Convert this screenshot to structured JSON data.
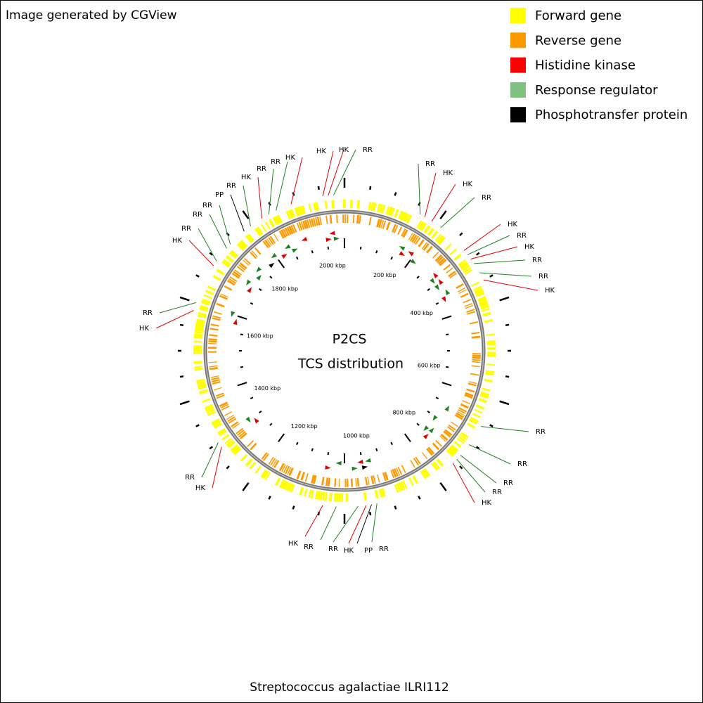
{
  "header": {
    "title": "Image generated by CGView"
  },
  "legend": [
    {
      "label": "Forward gene",
      "color": "#ffff00"
    },
    {
      "label": "Reverse gene",
      "color": "#ff9900"
    },
    {
      "label": "Histidine kinase",
      "color": "#ff0000"
    },
    {
      "label": "Response regulator",
      "color": "#80c080"
    },
    {
      "label": "Phosphotransfer protein",
      "color": "#000000"
    }
  ],
  "center": {
    "title": "P2CS",
    "subtitle": "TCS distribution"
  },
  "scale_labels": [
    "200 kbp",
    "400 kbp",
    "600 kbp",
    "800 kbp",
    "1000 kbp",
    "1200 kbp",
    "1400 kbp",
    "1600 kbp",
    "1800 kbp",
    "2000 kbp"
  ],
  "features": [
    {
      "label": "RR",
      "color": "#1f801f"
    },
    {
      "label": "HK",
      "color": "#e00000"
    },
    {
      "label": "HK",
      "color": "#e00000"
    },
    {
      "label": "RR",
      "color": "#1f801f"
    },
    {
      "label": "HK",
      "color": "#e00000"
    },
    {
      "label": "RR",
      "color": "#1f801f"
    },
    {
      "label": "HK",
      "color": "#e00000"
    },
    {
      "label": "RR",
      "color": "#1f801f"
    },
    {
      "label": "RR",
      "color": "#1f801f"
    },
    {
      "label": "HK",
      "color": "#e00000"
    },
    {
      "label": "RR",
      "color": "#1f801f"
    },
    {
      "label": "RR",
      "color": "#1f801f"
    },
    {
      "label": "RR",
      "color": "#1f801f"
    },
    {
      "label": "RR",
      "color": "#1f801f"
    },
    {
      "label": "HK",
      "color": "#e00000"
    },
    {
      "label": "RR",
      "color": "#1f801f"
    },
    {
      "label": "PP",
      "color": "#000000"
    },
    {
      "label": "HK",
      "color": "#e00000"
    },
    {
      "label": "RR",
      "color": "#1f801f"
    },
    {
      "label": "RR",
      "color": "#1f801f"
    },
    {
      "label": "HK",
      "color": "#e00000"
    },
    {
      "label": "HK",
      "color": "#e00000"
    },
    {
      "label": "RR",
      "color": "#1f801f"
    },
    {
      "label": "HK",
      "color": "#e00000"
    },
    {
      "label": "RR",
      "color": "#1f801f"
    },
    {
      "label": "HK",
      "color": "#e00000"
    },
    {
      "label": "RR",
      "color": "#1f801f"
    },
    {
      "label": "RR",
      "color": "#1f801f"
    },
    {
      "label": "RR",
      "color": "#1f801f"
    },
    {
      "label": "PP",
      "color": "#000000"
    },
    {
      "label": "RR",
      "color": "#1f801f"
    },
    {
      "label": "HK",
      "color": "#e00000"
    },
    {
      "label": "RR",
      "color": "#1f801f"
    },
    {
      "label": "RR",
      "color": "#1f801f"
    },
    {
      "label": "HK",
      "color": "#e00000"
    },
    {
      "label": "HK",
      "color": "#e00000"
    },
    {
      "label": "HK",
      "color": "#e00000"
    },
    {
      "label": "RR",
      "color": "#1f801f"
    }
  ],
  "footer": {
    "title": "Streptococcus agalactiae ILRI112"
  }
}
